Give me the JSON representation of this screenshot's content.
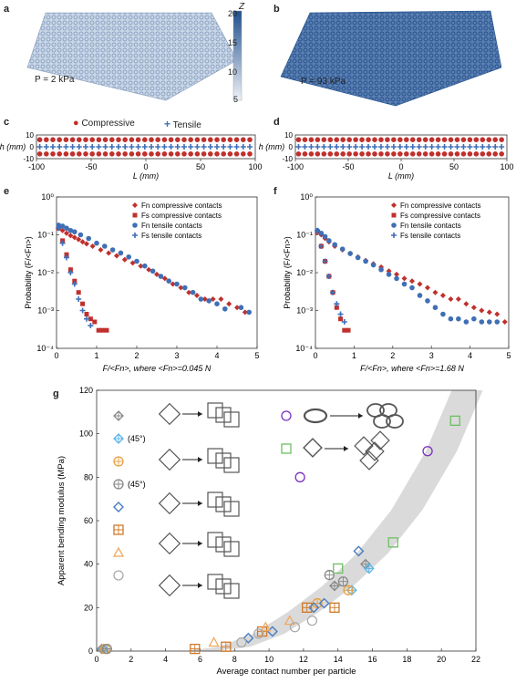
{
  "panels": {
    "a": {
      "letter": "a",
      "pressure": "P = 2 kPa"
    },
    "b": {
      "letter": "b",
      "pressure": "P = 93 kPa"
    },
    "c": {
      "letter": "c"
    },
    "d": {
      "letter": "d"
    },
    "e": {
      "letter": "e"
    },
    "f": {
      "letter": "f"
    },
    "g": {
      "letter": "g"
    }
  },
  "colorbar": {
    "title": "Z",
    "ticks": [
      "20",
      "15",
      "10",
      "5"
    ],
    "color_low": "#e8eef6",
    "color_high": "#1f4f8c"
  },
  "contact_legend": {
    "compressive": "Compressive",
    "tensile": "Tensile",
    "compressive_color": "#c0302c",
    "tensile_color": "#3f6fb5"
  },
  "chart_data": [
    {
      "id": "c",
      "type": "scatter",
      "xlabel": "L (mm)",
      "ylabel": "h (mm)",
      "xlim": [
        -100,
        100
      ],
      "ylim": [
        -10,
        10
      ],
      "xticks": [
        "-100",
        "-50",
        "0",
        "50",
        "100"
      ],
      "yticks": [
        "10",
        "0",
        "-10"
      ],
      "series": [
        {
          "name": "Compressive",
          "color": "#c0302c"
        },
        {
          "name": "Tensile",
          "color": "#3f6fb5"
        }
      ]
    },
    {
      "id": "d",
      "type": "scatter",
      "xlabel": "L (mm)",
      "ylabel": "h (mm)",
      "xlim": [
        -100,
        100
      ],
      "ylim": [
        -10,
        10
      ],
      "xticks": [
        "-100",
        "-50",
        "0",
        "50",
        "100"
      ],
      "yticks": [
        "10",
        "0",
        "-10"
      ],
      "series": [
        {
          "name": "Compressive",
          "color": "#c0302c"
        },
        {
          "name": "Tensile",
          "color": "#3f6fb5"
        }
      ]
    },
    {
      "id": "e",
      "type": "scatter",
      "log_y": true,
      "xlabel": "F/<Fn>, where <Fn>=0.045 N",
      "ylabel": "Probability (F/<Fn>)",
      "xlim": [
        0,
        5
      ],
      "ylim": [
        0.0001,
        1
      ],
      "xticks": [
        "0",
        "1",
        "2",
        "3",
        "4",
        "5"
      ],
      "yticks": [
        "10⁰",
        "10⁻¹",
        "10⁻²",
        "10⁻³",
        "10⁻⁴"
      ],
      "legend": [
        "Fn compressive contacts",
        "Fs compressive contacts",
        "Fn tensile contacts",
        "Fs tensile contacts"
      ],
      "series": [
        {
          "name": "Fn compressive contacts",
          "color": "#c0302c",
          "marker": "diamond",
          "x": [
            0.05,
            0.15,
            0.25,
            0.35,
            0.45,
            0.55,
            0.65,
            0.75,
            0.9,
            1.1,
            1.3,
            1.5,
            1.7,
            1.9,
            2.1,
            2.3,
            2.5,
            2.7,
            2.9,
            3.1,
            3.3,
            3.5,
            3.7,
            3.9,
            4.1,
            4.3,
            4.5,
            4.7
          ],
          "y": [
            0.15,
            0.13,
            0.11,
            0.095,
            0.085,
            0.075,
            0.065,
            0.058,
            0.05,
            0.04,
            0.033,
            0.028,
            0.022,
            0.018,
            0.015,
            0.012,
            0.009,
            0.007,
            0.005,
            0.004,
            0.003,
            0.0025,
            0.002,
            0.002,
            0.002,
            0.0015,
            0.0012,
            0.0009
          ]
        },
        {
          "name": "Fs compressive contacts",
          "color": "#c0302c",
          "marker": "square",
          "x": [
            0.05,
            0.15,
            0.25,
            0.35,
            0.45,
            0.55,
            0.65,
            0.75,
            0.85,
            0.95,
            1.05,
            1.15,
            1.25
          ],
          "y": [
            0.15,
            0.07,
            0.03,
            0.012,
            0.006,
            0.003,
            0.0015,
            0.0008,
            0.0006,
            0.0005,
            0.0003,
            0.0003,
            0.0003
          ]
        },
        {
          "name": "Fn tensile contacts",
          "color": "#3f6fb5",
          "marker": "circle",
          "x": [
            0.05,
            0.15,
            0.25,
            0.35,
            0.45,
            0.6,
            0.8,
            1.0,
            1.2,
            1.4,
            1.6,
            1.8,
            2.0,
            2.2,
            2.4,
            2.6,
            2.8,
            3.0,
            3.2,
            3.4,
            3.6,
            3.8,
            4.0,
            4.2,
            4.6,
            4.8
          ],
          "y": [
            0.18,
            0.17,
            0.15,
            0.13,
            0.12,
            0.1,
            0.08,
            0.06,
            0.05,
            0.04,
            0.033,
            0.026,
            0.02,
            0.015,
            0.011,
            0.008,
            0.006,
            0.005,
            0.004,
            0.003,
            0.002,
            0.0018,
            0.0015,
            0.0011,
            0.0012,
            0.0009
          ]
        },
        {
          "name": "Fs tensile contacts",
          "color": "#3f6fb5",
          "marker": "plus",
          "x": [
            0.05,
            0.15,
            0.25,
            0.35,
            0.45,
            0.55,
            0.65,
            0.75,
            0.85
          ],
          "y": [
            0.15,
            0.06,
            0.025,
            0.01,
            0.005,
            0.002,
            0.001,
            0.0006,
            0.0004
          ]
        }
      ]
    },
    {
      "id": "f",
      "type": "scatter",
      "log_y": true,
      "xlabel": "F/<Fn>, where <Fn>=1.68 N",
      "ylabel": "Probability (F/<Fn>)",
      "xlim": [
        0,
        5
      ],
      "ylim": [
        0.0001,
        1
      ],
      "xticks": [
        "0",
        "1",
        "2",
        "3",
        "4",
        "5"
      ],
      "yticks": [
        "10⁰",
        "10⁻¹",
        "10⁻²",
        "10⁻³",
        "10⁻⁴"
      ],
      "legend": [
        "Fn compressive contacts",
        "Fs compressive contacts",
        "Fn tensile contacts",
        "Fs tensile contacts"
      ],
      "series": [
        {
          "name": "Fn compressive contacts",
          "color": "#c0302c",
          "marker": "diamond",
          "x": [
            0.05,
            0.15,
            0.25,
            0.35,
            0.5,
            0.7,
            0.9,
            1.1,
            1.3,
            1.5,
            1.7,
            1.9,
            2.1,
            2.3,
            2.5,
            2.7,
            2.9,
            3.1,
            3.3,
            3.5,
            3.7,
            3.9,
            4.1,
            4.3,
            4.5,
            4.7,
            4.9
          ],
          "y": [
            0.12,
            0.1,
            0.08,
            0.065,
            0.05,
            0.04,
            0.032,
            0.026,
            0.021,
            0.017,
            0.014,
            0.011,
            0.009,
            0.007,
            0.006,
            0.005,
            0.004,
            0.003,
            0.0025,
            0.002,
            0.002,
            0.0015,
            0.0012,
            0.001,
            0.0009,
            0.0008,
            0.0005
          ]
        },
        {
          "name": "Fs compressive contacts",
          "color": "#c0302c",
          "marker": "square",
          "x": [
            0.05,
            0.15,
            0.25,
            0.35,
            0.45,
            0.55,
            0.65,
            0.75,
            0.85
          ],
          "y": [
            0.12,
            0.05,
            0.02,
            0.008,
            0.003,
            0.0012,
            0.0006,
            0.0003,
            0.0003
          ]
        },
        {
          "name": "Fn tensile contacts",
          "color": "#3f6fb5",
          "marker": "circle",
          "x": [
            0.05,
            0.15,
            0.25,
            0.35,
            0.5,
            0.7,
            0.9,
            1.1,
            1.3,
            1.5,
            1.7,
            1.9,
            2.1,
            2.3,
            2.5,
            2.7,
            2.9,
            3.1,
            3.3,
            3.5,
            3.7,
            3.9,
            4.1,
            4.3,
            4.5,
            4.7
          ],
          "y": [
            0.13,
            0.11,
            0.09,
            0.07,
            0.055,
            0.042,
            0.032,
            0.025,
            0.02,
            0.016,
            0.012,
            0.009,
            0.007,
            0.005,
            0.004,
            0.0025,
            0.0018,
            0.0012,
            0.0008,
            0.0006,
            0.0006,
            0.0005,
            0.0006,
            0.0005,
            0.0005,
            0.0005
          ]
        },
        {
          "name": "Fs tensile contacts",
          "color": "#3f6fb5",
          "marker": "plus",
          "x": [
            0.05,
            0.15,
            0.25,
            0.35,
            0.45,
            0.55,
            0.65,
            0.75
          ],
          "y": [
            0.13,
            0.05,
            0.02,
            0.008,
            0.003,
            0.0015,
            0.0008,
            0.0005
          ]
        }
      ]
    },
    {
      "id": "g",
      "type": "scatter",
      "xlabel": "Average contact number per particle",
      "ylabel": "Apparent bending modulus (MPa)",
      "xlim": [
        0,
        22
      ],
      "ylim": [
        0,
        120
      ],
      "xticks": [
        "0",
        "2",
        "4",
        "6",
        "8",
        "10",
        "12",
        "14",
        "16",
        "18",
        "20",
        "22"
      ],
      "yticks": [
        "0",
        "20",
        "40",
        "60",
        "80",
        "100",
        "120"
      ],
      "band": {
        "x": [
          6,
          8,
          10,
          12,
          14,
          16,
          18,
          20,
          21.5
        ],
        "y": [
          0,
          2,
          8,
          18,
          30,
          45,
          65,
          92,
          120
        ]
      },
      "legend": [
        "(45°)",
        "(45°)"
      ],
      "series": [
        {
          "marker": "crossed-diamond",
          "color": "#888888",
          "x": [
            0.3,
            13.8,
            15.6
          ],
          "y": [
            1,
            30,
            40
          ]
        },
        {
          "marker": "crossed-diamond",
          "color": "#5ab4e8",
          "x": [
            0.4,
            14.8,
            15.8
          ],
          "y": [
            1,
            28,
            38
          ]
        },
        {
          "marker": "crossed-circle",
          "color": "#e8a040",
          "x": [
            0.5,
            12.8,
            14.6
          ],
          "y": [
            1,
            22,
            28
          ]
        },
        {
          "marker": "crossed-circle",
          "color": "#888888",
          "x": [
            0.6,
            13.5,
            14.3
          ],
          "y": [
            1,
            35,
            32
          ]
        },
        {
          "marker": "diamond",
          "color": "#4a7cc0",
          "x": [
            8.8,
            10.2,
            12.6,
            13.2,
            15.2
          ],
          "y": [
            6,
            9,
            20,
            22,
            46
          ]
        },
        {
          "marker": "crossed-square",
          "color": "#d07828",
          "x": [
            5.7,
            7.5,
            9.6,
            12.2,
            13.8
          ],
          "y": [
            1,
            2,
            9,
            20,
            20
          ]
        },
        {
          "marker": "triangle",
          "color": "#f0a860",
          "x": [
            6.8,
            9.8,
            11.2
          ],
          "y": [
            4,
            11,
            14
          ]
        },
        {
          "marker": "circle",
          "color": "#aaaaaa",
          "x": [
            8.4,
            9.4,
            11.5,
            12.5
          ],
          "y": [
            4,
            8,
            11,
            14
          ]
        },
        {
          "marker": "circle",
          "color": "#7b2fc0",
          "x": [
            11.8,
            19.2
          ],
          "y": [
            80,
            92
          ]
        },
        {
          "marker": "square",
          "color": "#6cc060",
          "x": [
            14.0,
            17.2,
            20.8
          ],
          "y": [
            38,
            50,
            106
          ]
        }
      ]
    }
  ]
}
